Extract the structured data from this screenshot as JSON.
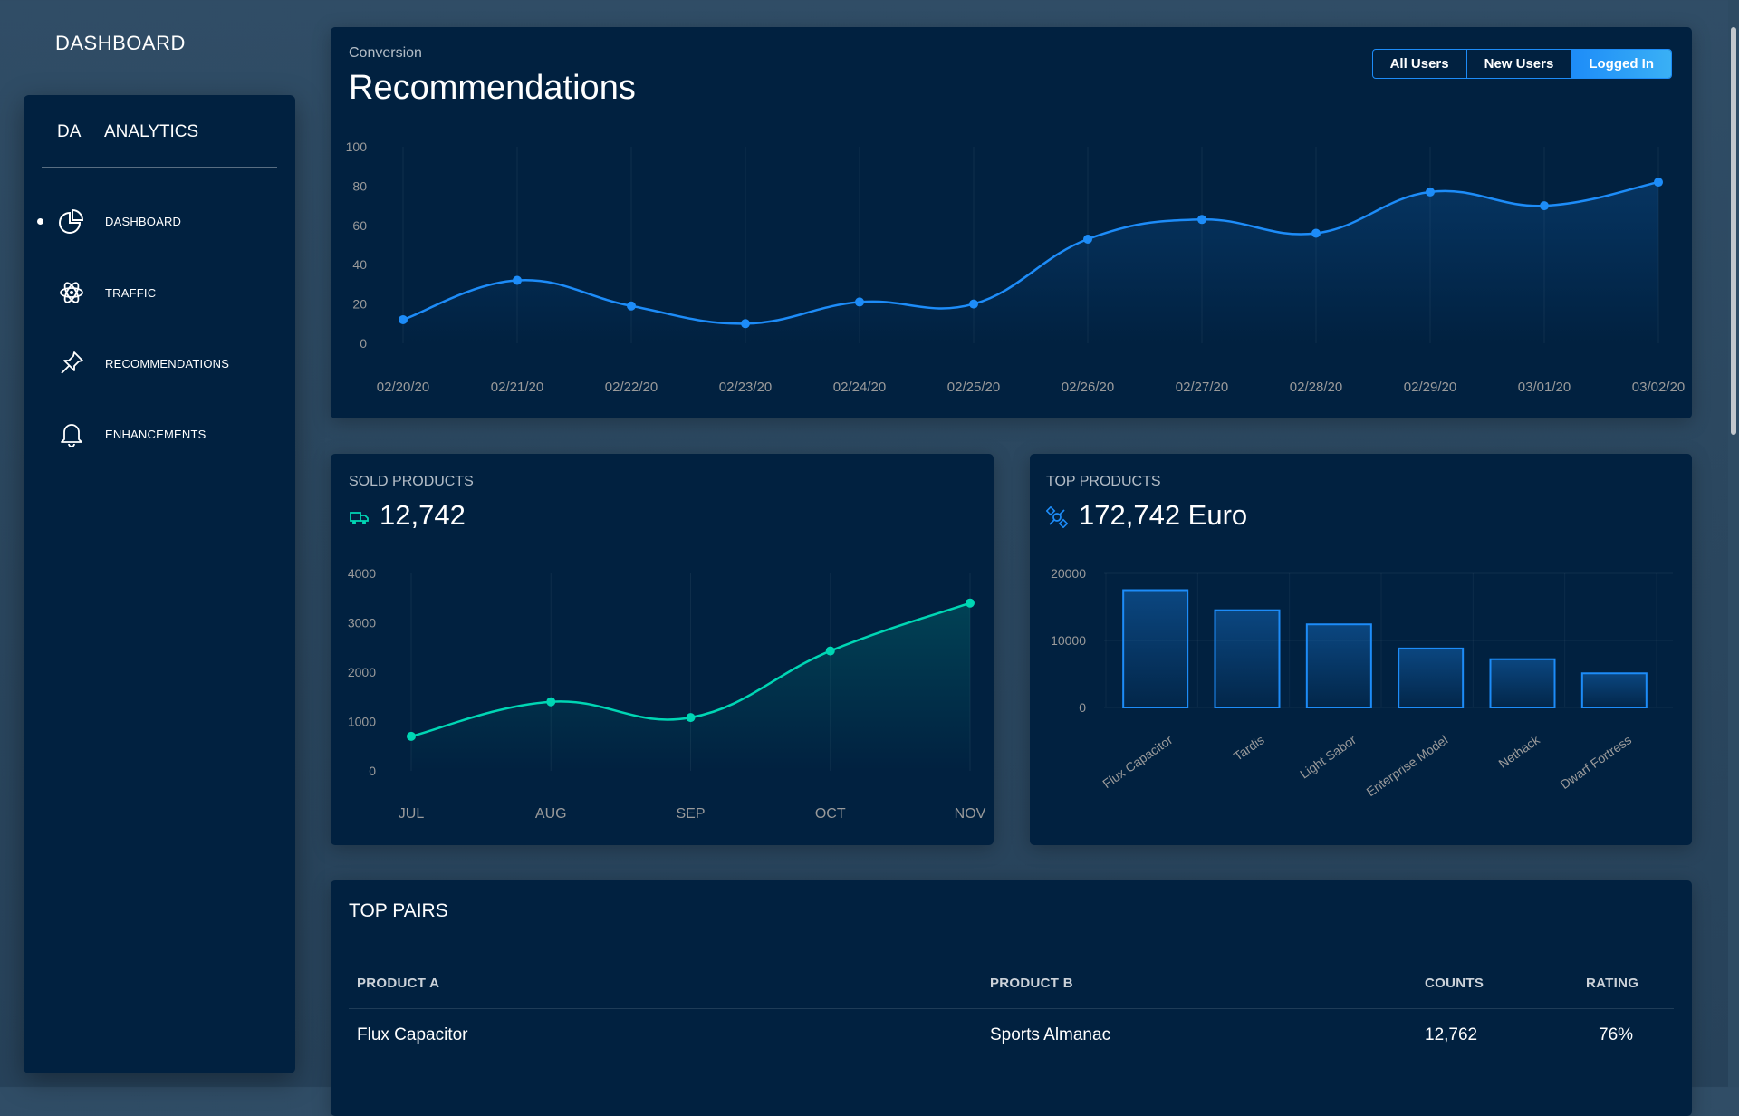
{
  "brand": "DASHBOARD",
  "sidebar": {
    "logo_mini": "DA",
    "logo_text": "ANALYTICS",
    "items": [
      {
        "label": "DASHBOARD",
        "icon": "chart-pie-icon",
        "active": true
      },
      {
        "label": "TRAFFIC",
        "icon": "atom-icon",
        "active": false
      },
      {
        "label": "RECOMMENDATIONS",
        "icon": "pin-icon",
        "active": false
      },
      {
        "label": "ENHANCEMENTS",
        "icon": "bell-icon",
        "active": false
      }
    ]
  },
  "main_chart": {
    "category": "Conversion",
    "title": "Recommendations",
    "buttons": [
      "All Users",
      "New Users",
      "Logged In"
    ],
    "selected_button": "Logged In"
  },
  "sold_products": {
    "category": "SOLD PRODUCTS",
    "value": "12,742",
    "icon": "delivery-truck-icon"
  },
  "top_products": {
    "category": "TOP PRODUCTS",
    "value": "172,742 Euro",
    "icon": "satellite-icon"
  },
  "top_pairs": {
    "title": "TOP PAIRS",
    "headers": [
      "PRODUCT A",
      "PRODUCT B",
      "COUNTS",
      "RATING"
    ],
    "rows": [
      {
        "a": "Flux Capacitor",
        "b": "Sports Almanac",
        "count": "12,762",
        "rating": "76%"
      }
    ]
  },
  "chart_data": [
    {
      "type": "line",
      "x": [
        "02/20/20",
        "02/21/20",
        "02/22/20",
        "02/23/20",
        "02/24/20",
        "02/25/20",
        "02/26/20",
        "02/27/20",
        "02/28/20",
        "02/29/20",
        "03/01/20",
        "03/02/20"
      ],
      "values": [
        12,
        32,
        19,
        10,
        21,
        20,
        53,
        63,
        56,
        77,
        70,
        82
      ],
      "ylim": [
        0,
        100
      ],
      "yticks": [
        0,
        20,
        40,
        60,
        80,
        100
      ],
      "color": "#1d8cf8",
      "grid": true
    },
    {
      "type": "line",
      "x": [
        "JUL",
        "AUG",
        "SEP",
        "OCT",
        "NOV"
      ],
      "values": [
        700,
        1400,
        1080,
        2430,
        3400
      ],
      "ylim": [
        0,
        4000
      ],
      "yticks": [
        0,
        1000,
        2000,
        3000,
        4000
      ],
      "color": "#00d6b4",
      "grid": true
    },
    {
      "type": "bar",
      "categories": [
        "Flux Capacitor",
        "Tardis",
        "Light Sabor",
        "Enterprise Model",
        "Nethack",
        "Dwarf Fortress"
      ],
      "values": [
        17500,
        14500,
        12400,
        8800,
        7200,
        5100
      ],
      "ylim": [
        0,
        20000
      ],
      "yticks": [
        0,
        10000,
        20000
      ],
      "color": "#1d8cf8",
      "grid": true
    }
  ]
}
